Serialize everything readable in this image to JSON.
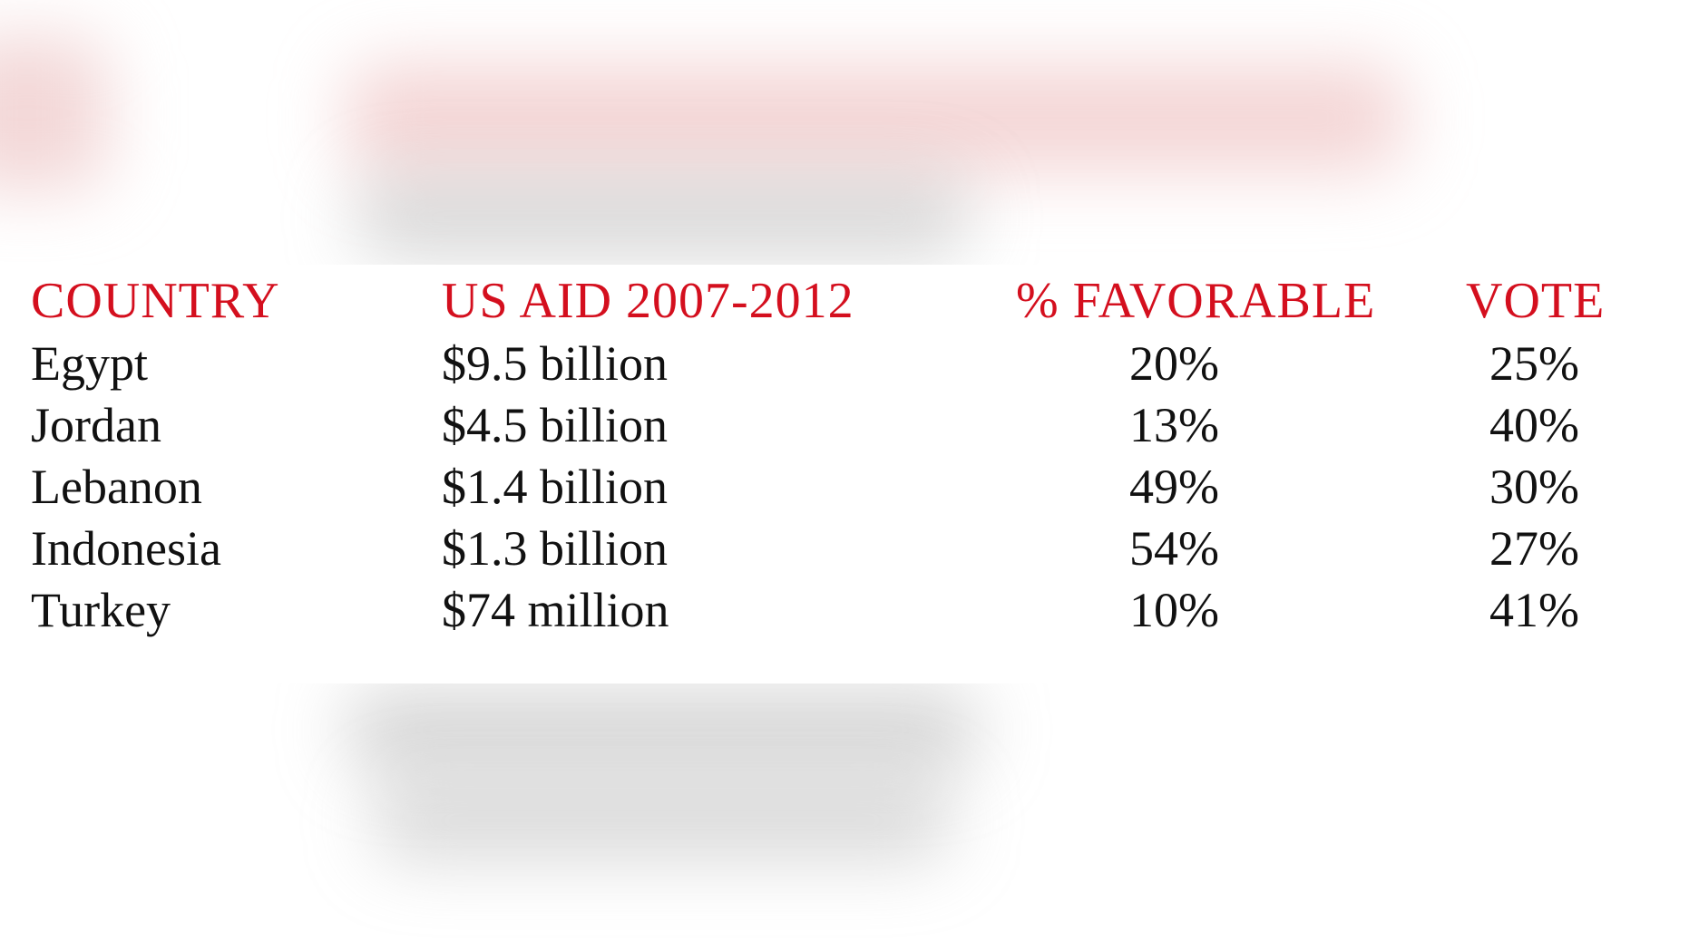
{
  "chart_data": {
    "type": "table",
    "columns": [
      "COUNTRY",
      "US AID 2007-2012",
      "% FAVORABLE",
      "VOTE"
    ],
    "rows": [
      [
        "Egypt",
        "$9.5 billion",
        "20%",
        "25%"
      ],
      [
        "Jordan",
        "$4.5 billion",
        "13%",
        "40%"
      ],
      [
        "Lebanon",
        "$1.4 billion",
        "49%",
        "30%"
      ],
      [
        "Indonesia",
        "$1.3 billion",
        "54%",
        "27%"
      ],
      [
        "Turkey",
        "$74 million",
        "10%",
        "41%"
      ]
    ],
    "header_color": "#d40f1e",
    "text_color": "#111111"
  }
}
